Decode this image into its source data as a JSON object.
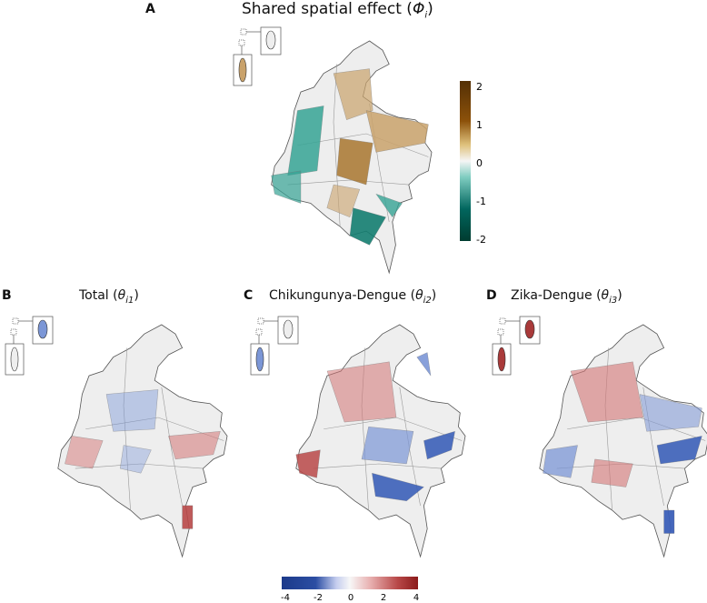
{
  "panels": [
    {
      "letter": "A",
      "title": "Shared spatial effect (",
      "symbol": "Φ",
      "sub": "i",
      "close": ")"
    },
    {
      "letter": "B",
      "title": "Total (",
      "symbol": "θ",
      "sub": "i1",
      "close": ")"
    },
    {
      "letter": "C",
      "title": "Chikungunya-Dengue (",
      "symbol": "θ",
      "sub": "i2",
      "close": ")"
    },
    {
      "letter": "D",
      "title": "Zika-Dengue (",
      "symbol": "θ",
      "sub": "i3",
      "close": ")"
    }
  ],
  "legend_shared": {
    "ticks": [
      "2",
      "1",
      "0",
      "-1",
      "-2"
    ],
    "low_color": "#01665e",
    "mid_color": "#f5f5f5",
    "high_color": "#8c510a"
  },
  "legend_specific": {
    "ticks": [
      "-4",
      "-2",
      "0",
      "2",
      "4"
    ],
    "low_color": "#2c4ea3",
    "mid_color": "#f7f7f7",
    "high_color": "#8b1a1a"
  },
  "colors": {
    "base_fill": "#eeeeee",
    "outline": "#555555",
    "brown": "#c9a26b",
    "teal": "#35a394",
    "blue": "#7b96d6",
    "red": "#d47474"
  }
}
